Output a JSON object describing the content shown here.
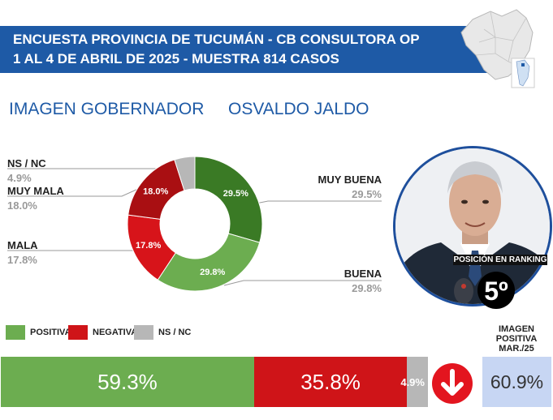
{
  "header": {
    "line1": "ENCUESTA PROVINCIA DE TUCUMÁN - CB CONSULTORA OP",
    "line2": "1 AL 4 DE ABRIL DE 2025 - MUESTRA 814 CASOS"
  },
  "subtitle": {
    "part1": "IMAGEN GOBERNADOR",
    "part2": "OSVALDO JALDO"
  },
  "colors": {
    "header_bg": "#1e5aa6",
    "muy_buena": "#3a7a25",
    "buena": "#6cad50",
    "mala": "#d7141a",
    "muy_mala": "#a90f12",
    "ns_nc": "#b7b7b7",
    "positiva": "#6cad50",
    "negativa": "#cf1418",
    "previous_bg": "#c7d6f3",
    "arrow": "#e3151f"
  },
  "chart_data": [
    {
      "type": "pie",
      "donut": true,
      "categories": [
        "MUY BUENA",
        "BUENA",
        "MALA",
        "MUY MALA",
        "NS / NC"
      ],
      "values": [
        29.5,
        29.8,
        17.8,
        18.0,
        4.9
      ],
      "slice_labels": [
        "29.5%",
        "29.8%",
        "17.8%",
        "18.0%",
        ""
      ],
      "outer_labels": [
        "29.5%",
        "29.8%",
        "17.8%",
        "18.0%",
        "4.9%"
      ]
    },
    {
      "type": "bar",
      "orientation": "horizontal-stacked",
      "categories": [
        "POSITIVA",
        "NEGATIVA",
        "NS / NC"
      ],
      "values": [
        59.3,
        35.8,
        4.9
      ],
      "labels": [
        "59.3%",
        "35.8%",
        "4.9%"
      ]
    }
  ],
  "legend": [
    "POSITIVA",
    "NEGATIVA",
    "NS / NC"
  ],
  "ranking": {
    "label": "POSICIÓN EN RANKING",
    "value": "5º"
  },
  "previous": {
    "title_lines": [
      "IMAGEN",
      "POSITIVA",
      "MAR./25"
    ],
    "value": "60.9%",
    "trend_icon": "arrow-down-icon"
  }
}
